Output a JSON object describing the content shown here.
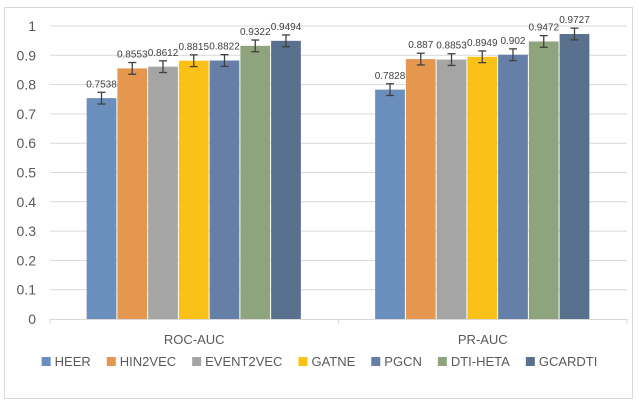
{
  "chart_data": {
    "type": "bar",
    "title": "",
    "xlabel": "",
    "ylabel": "",
    "ylim": [
      0,
      1
    ],
    "yticks": [
      "0",
      "0.1",
      "0.2",
      "0.3",
      "0.4",
      "0.5",
      "0.6",
      "0.7",
      "0.8",
      "0.9",
      "1"
    ],
    "grid": true,
    "legend_position": "bottom",
    "categories": [
      "ROC-AUC",
      "PR-AUC"
    ],
    "series": [
      {
        "name": "HEER",
        "color": "#6a8fbc",
        "values": [
          0.7538,
          0.7828
        ],
        "labels": [
          "0.7538",
          "0.7828"
        ],
        "error": [
          0.02,
          0.02
        ]
      },
      {
        "name": "HIN2VEC",
        "color": "#e5964f",
        "values": [
          0.8553,
          0.887
        ],
        "labels": [
          "0.8553",
          "0.887"
        ],
        "error": [
          0.02,
          0.02
        ]
      },
      {
        "name": "EVENT2VEC",
        "color": "#a5a5a5",
        "values": [
          0.8612,
          0.8853
        ],
        "labels": [
          "0.8612",
          "0.8853"
        ],
        "error": [
          0.02,
          0.02
        ]
      },
      {
        "name": "GATNE",
        "color": "#fcc116",
        "values": [
          0.8815,
          0.8949
        ],
        "labels": [
          "0.8815",
          "0.8949"
        ],
        "error": [
          0.02,
          0.02
        ]
      },
      {
        "name": "PGCN",
        "color": "#667fa8",
        "values": [
          0.8822,
          0.902
        ],
        "labels": [
          "0.8822",
          "0.902"
        ],
        "error": [
          0.02,
          0.02
        ]
      },
      {
        "name": "DTI-HETA",
        "color": "#8ea47d",
        "values": [
          0.9322,
          0.9472
        ],
        "labels": [
          "0.9322",
          "0.9472"
        ],
        "error": [
          0.02,
          0.02
        ]
      },
      {
        "name": "GCARDTI",
        "color": "#59708f",
        "values": [
          0.9494,
          0.9727
        ],
        "labels": [
          "0.9494",
          "0.9727"
        ],
        "error": [
          0.02,
          0.02
        ]
      }
    ]
  }
}
